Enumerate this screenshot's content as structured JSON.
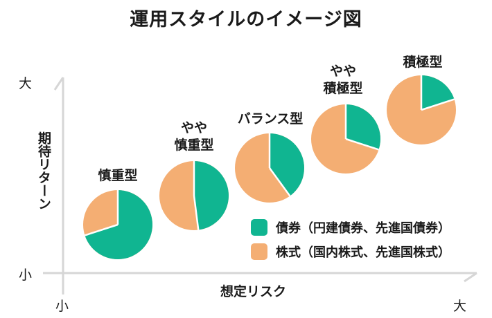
{
  "title": "運用スタイルのイメージ図",
  "axes": {
    "y_label": "期待リターン",
    "y_high": "大",
    "y_low": "小",
    "x_label": "想定リスク",
    "x_low": "小",
    "x_high": "大",
    "line_color": "#d6d6d6"
  },
  "legend": {
    "items": [
      {
        "label": "債券（円建債券、先進国債券）",
        "color": "#10b591"
      },
      {
        "label": "株式（国内株式、先進国株式）",
        "color": "#f4ae73"
      }
    ]
  },
  "styles": [
    {
      "label_line1": "",
      "label_line2": "慎重型",
      "bonds": 70,
      "stocks": 30
    },
    {
      "label_line1": "やや",
      "label_line2": "慎重型",
      "bonds": 48,
      "stocks": 52
    },
    {
      "label_line1": "",
      "label_line2": "バランス型",
      "bonds": 40,
      "stocks": 60
    },
    {
      "label_line1": "やや",
      "label_line2": "積極型",
      "bonds": 30,
      "stocks": 70
    },
    {
      "label_line1": "",
      "label_line2": "積極型",
      "bonds": 20,
      "stocks": 80
    }
  ],
  "chart_data": {
    "type": "pie",
    "title": "運用スタイルのイメージ図",
    "xlabel": "想定リスク",
    "ylabel": "期待リターン",
    "categories": [
      "債券（円建債券、先進国債券）",
      "株式（国内株式、先進国株式）"
    ],
    "series": [
      {
        "name": "慎重型",
        "values": [
          70,
          30
        ]
      },
      {
        "name": "やや慎重型",
        "values": [
          48,
          52
        ]
      },
      {
        "name": "バランス型",
        "values": [
          40,
          60
        ]
      },
      {
        "name": "やや積極型",
        "values": [
          30,
          70
        ]
      },
      {
        "name": "積極型",
        "values": [
          20,
          80
        ]
      }
    ],
    "legend_position": "right-middle",
    "grid": false
  }
}
